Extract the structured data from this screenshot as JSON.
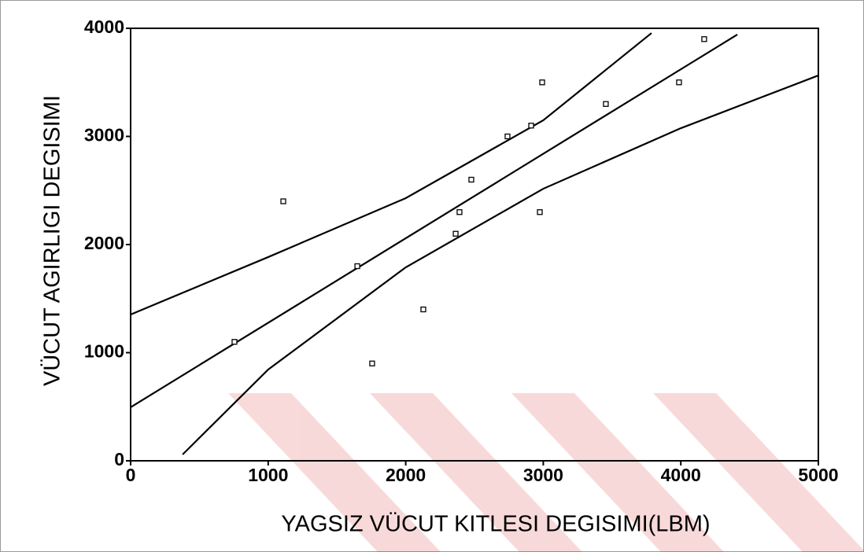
{
  "chart_data": {
    "type": "scatter",
    "x_label": "YAGSIZ VÜCUT KITLESI DEGISIMI(LBM)",
    "y_label": "VÜCUT AGIRLIGI DEGISIMI",
    "x": [
      755,
      1110,
      1648,
      1756,
      2128,
      2363,
      2391,
      2477,
      2740,
      2912,
      2992,
      2975,
      3455,
      3987,
      4170
    ],
    "values": [
      1100,
      2400,
      1800,
      900,
      1400,
      2100,
      2300,
      2600,
      3000,
      3100,
      3500,
      2300,
      3300,
      3500,
      3900
    ],
    "color": "#000000",
    "fit_lines": [
      {
        "x": [
          0,
          4411
        ],
        "values": [
          495,
          3942
        ]
      },
      {
        "x": [
          0,
          1000,
          2000,
          3000,
          3787
        ],
        "values": [
          1353,
          1884,
          2429,
          3149,
          3956
        ]
      },
      {
        "x": [
          378,
          1000,
          2000,
          3000,
          4000,
          5000
        ],
        "values": [
          58,
          844,
          1789,
          2516,
          3076,
          3564
        ]
      }
    ],
    "xlim": [
      0,
      5000
    ],
    "ylim": [
      0,
      4000
    ],
    "xticks": [
      0,
      1000,
      2000,
      3000,
      4000,
      5000
    ],
    "yticks": [
      0,
      1000,
      2000,
      3000,
      4000
    ],
    "grid": false
  }
}
